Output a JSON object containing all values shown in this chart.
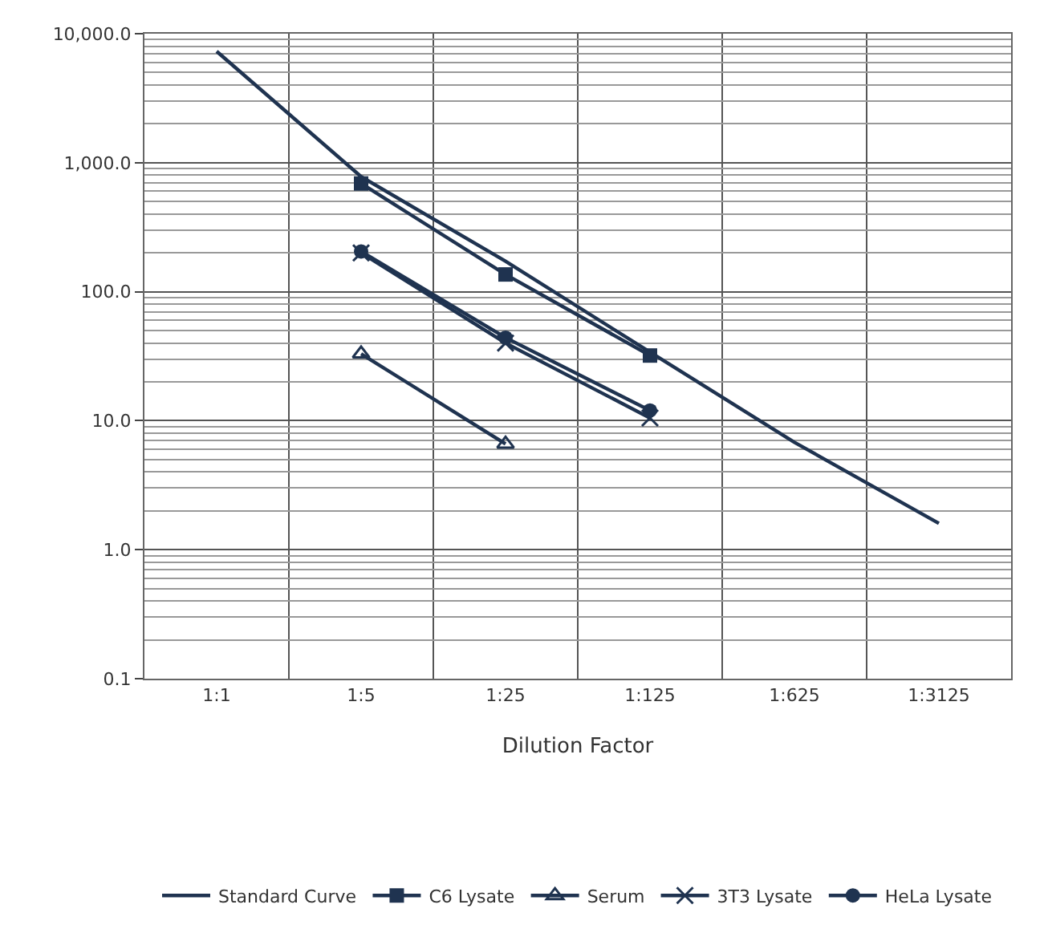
{
  "chart_data": {
    "type": "line",
    "xlabel": "Dilution Factor",
    "categories": [
      "1:1",
      "1:5",
      "1:25",
      "1:125",
      "1:625",
      "1:3125"
    ],
    "series": [
      {
        "name": "Standard Curve",
        "color": "#1f3350",
        "marker": "none",
        "values": [
          7300,
          780,
          172,
          34,
          6.8,
          1.6
        ]
      },
      {
        "name": "C6 Lysate",
        "color": "#1f3350",
        "marker": "square",
        "values": [
          null,
          690,
          136,
          32,
          null,
          null
        ]
      },
      {
        "name": "Serum",
        "color": "#1f3350",
        "marker": "triangle",
        "values": [
          null,
          33,
          6.6,
          null,
          null,
          null
        ]
      },
      {
        "name": "3T3 Lysate",
        "color": "#1f3350",
        "marker": "cross",
        "values": [
          null,
          200,
          40,
          10.5,
          null,
          null
        ]
      },
      {
        "name": "HeLa Lysate",
        "color": "#1f3350",
        "marker": "circle",
        "values": [
          null,
          205,
          44,
          12,
          null,
          null
        ]
      }
    ],
    "log": true,
    "ylim": [
      0.1,
      10000
    ],
    "yticks": [
      {
        "value": 0.1,
        "label": "0.1"
      },
      {
        "value": 1,
        "label": "1.0"
      },
      {
        "value": 10,
        "label": "10.0"
      },
      {
        "value": 100,
        "label": "100.0"
      },
      {
        "value": 1000,
        "label": "1,000.0"
      },
      {
        "value": 10000,
        "label": "10,000.0"
      }
    ],
    "grid": true,
    "legend": "bottom"
  }
}
